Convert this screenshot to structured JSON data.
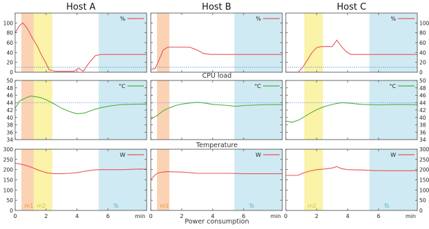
{
  "hosts": [
    "Host A",
    "Host B",
    "Host C"
  ],
  "row_labels": [
    "CPU load",
    "Temperature",
    "Power consumption"
  ],
  "x_axis": {
    "min": 0,
    "max": 8.5,
    "ticks": [
      0,
      2,
      4,
      6
    ],
    "unit": "min"
  },
  "colors": {
    "cpu": "#e8545a",
    "temp": "#4fae3c",
    "power": "#e8545a",
    "threshold": "#5a8fd6",
    "m1": "#fbd3b4",
    "m2": "#faf3a8",
    "ts": "#cfeaf2",
    "m1_text": "#e8963c",
    "m2_text": "#d4c14a",
    "ts_text": "#6aa8c8"
  },
  "chart_data": [
    {
      "type": "line",
      "metric": "cpu",
      "legend": "%",
      "ylim": [
        0,
        120
      ],
      "yticks": [
        0,
        20,
        40,
        60,
        80,
        100
      ],
      "threshold": 10,
      "panels": [
        {
          "host": "Host A",
          "x": [
            0,
            0.3,
            0.5,
            0.8,
            1.1,
            1.4,
            1.7,
            2.0,
            2.2,
            2.6,
            3.0,
            3.4,
            3.8,
            4.1,
            4.4,
            4.8,
            5.2,
            5.6,
            8.5
          ],
          "y": [
            80,
            95,
            100,
            88,
            70,
            55,
            35,
            18,
            5,
            2,
            2,
            2,
            2,
            8,
            2,
            20,
            34,
            36,
            36
          ]
        },
        {
          "host": "Host B",
          "x": [
            0,
            0.3,
            0.6,
            0.8,
            1.1,
            2.5,
            3.0,
            3.4,
            3.9,
            8.5
          ],
          "y": [
            5,
            8,
            30,
            45,
            51,
            51,
            45,
            38,
            36,
            36
          ]
        },
        {
          "host": "Host C",
          "x": [
            0,
            0.8,
            1.1,
            1.4,
            1.7,
            2.0,
            2.3,
            2.6,
            3.0,
            3.3,
            3.6,
            3.9,
            4.2,
            4.6,
            8.5
          ],
          "y": [
            0,
            0,
            10,
            25,
            40,
            50,
            52,
            52,
            52,
            65,
            52,
            42,
            36,
            36,
            36
          ]
        }
      ]
    },
    {
      "type": "line",
      "metric": "temp",
      "legend": "°C",
      "ylim": [
        34,
        50
      ],
      "yticks": [
        34,
        36,
        38,
        40,
        42,
        44,
        46,
        48,
        50
      ],
      "threshold": 44,
      "panels": [
        {
          "host": "Host A",
          "x": [
            0,
            0.3,
            0.7,
            1.0,
            1.3,
            1.6,
            2.0,
            2.5,
            3.0,
            3.5,
            4.0,
            4.5,
            5.0,
            5.5,
            6.0,
            6.5,
            7.0,
            8.0,
            8.5
          ],
          "y": [
            42.5,
            44.5,
            45.3,
            45.8,
            45.6,
            45.4,
            44.8,
            43.7,
            42.5,
            41.6,
            41.0,
            41.2,
            42.0,
            42.6,
            43.0,
            43.3,
            43.5,
            43.6,
            43.6
          ]
        },
        {
          "host": "Host B",
          "x": [
            0,
            0.4,
            0.8,
            1.2,
            1.6,
            2.0,
            2.5,
            3.0,
            3.5,
            4.0,
            4.5,
            5.0,
            5.5,
            6.0,
            7.0,
            8.0,
            8.5
          ],
          "y": [
            39.5,
            40.5,
            41.8,
            42.6,
            43.2,
            43.6,
            43.9,
            44.1,
            43.9,
            43.5,
            43.4,
            43.2,
            43.0,
            43.2,
            43.4,
            43.5,
            43.4
          ]
        },
        {
          "host": "Host C",
          "x": [
            0,
            0.4,
            0.8,
            1.2,
            1.6,
            2.0,
            2.4,
            2.8,
            3.2,
            3.6,
            4.0,
            4.5,
            5.0,
            6.0,
            7.0,
            8.0,
            8.5
          ],
          "y": [
            39.0,
            38.7,
            39.2,
            40.2,
            41.2,
            42.1,
            42.8,
            43.3,
            43.7,
            44.0,
            43.9,
            43.7,
            43.5,
            43.4,
            43.5,
            43.5,
            43.4
          ]
        }
      ]
    },
    {
      "type": "line",
      "metric": "power",
      "legend": "W",
      "ylim": [
        0,
        300
      ],
      "yticks": [
        0,
        50,
        100,
        150,
        200,
        250,
        300
      ],
      "panels": [
        {
          "host": "Host A",
          "x": [
            0,
            0.5,
            1.0,
            1.5,
            2.0,
            2.5,
            3.0,
            3.5,
            4.0,
            4.5,
            5.0,
            5.5,
            6.0,
            7.0,
            8.0,
            8.5
          ],
          "y": [
            232,
            225,
            213,
            198,
            185,
            180,
            180,
            182,
            185,
            192,
            198,
            200,
            200,
            200,
            203,
            202
          ]
        },
        {
          "host": "Host B",
          "x": [
            0,
            0.3,
            0.5,
            1.0,
            2.0,
            3.0,
            4.0,
            5.0,
            6.0,
            7.0,
            8.0,
            8.5
          ],
          "y": [
            152,
            175,
            185,
            190,
            188,
            182,
            182,
            182,
            180,
            180,
            180,
            180
          ]
        },
        {
          "host": "Host C",
          "x": [
            0,
            0.8,
            1.0,
            1.5,
            2.0,
            2.5,
            3.0,
            3.3,
            3.6,
            4.0,
            5.0,
            6.0,
            7.0,
            8.0,
            8.5
          ],
          "y": [
            172,
            172,
            180,
            192,
            200,
            203,
            208,
            215,
            205,
            200,
            198,
            195,
            195,
            195,
            195
          ]
        }
      ]
    }
  ],
  "phases": [
    {
      "host": "Host A",
      "m1": [
        0.4,
        1.2
      ],
      "m2": [
        1.2,
        2.4
      ],
      "ts": [
        5.4,
        8.5
      ]
    },
    {
      "host": "Host B",
      "m1": [
        0.4,
        1.2
      ],
      "m2": null,
      "ts": [
        5.4,
        8.5
      ]
    },
    {
      "host": "Host C",
      "m1": null,
      "m2": [
        1.2,
        2.4
      ],
      "ts": [
        5.4,
        8.5
      ]
    }
  ],
  "phase_labels": {
    "m1": "m1",
    "m2": "m2",
    "ts": "Ts"
  }
}
